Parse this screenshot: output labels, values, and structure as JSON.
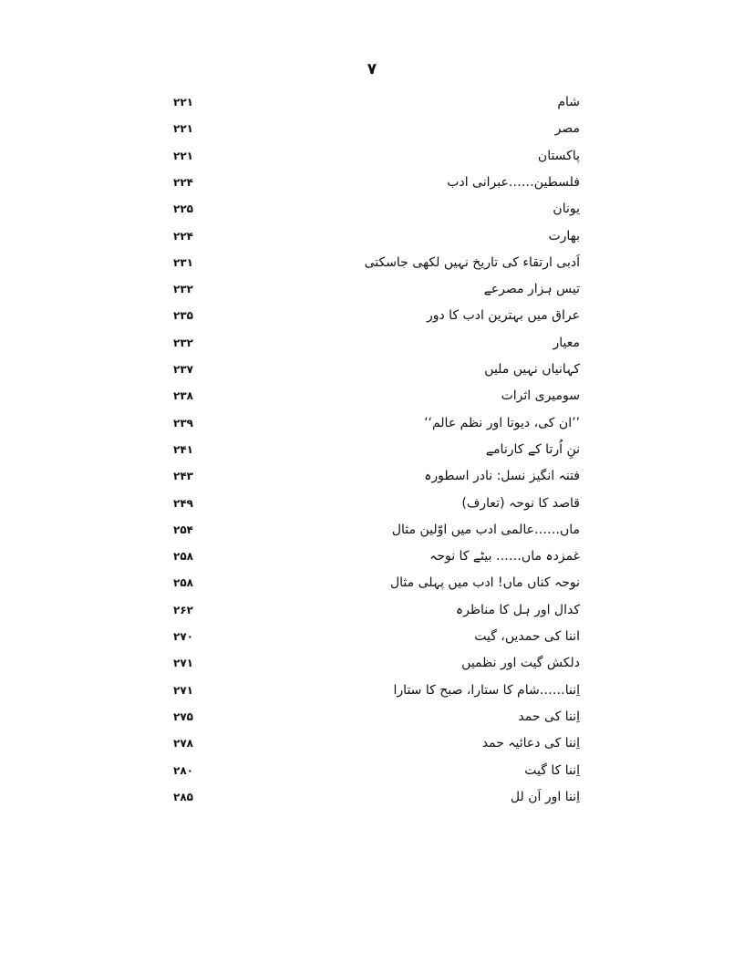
{
  "page_number": "۷",
  "entries": [
    {
      "title": "شام",
      "page": "۲۲۱"
    },
    {
      "title": "مصر",
      "page": "۲۲۱"
    },
    {
      "title": "پاکستان",
      "page": "۲۲۱"
    },
    {
      "title": "فلسطین……عبرانی ادب",
      "page": "۲۲۴"
    },
    {
      "title": "یونان",
      "page": "۲۲۵"
    },
    {
      "title": "بھارت",
      "page": "۲۲۴"
    },
    {
      "title": "اَدبی ارتقاء کی تاریخ نہیں لکھی جاسکتی",
      "page": "۲۳۱"
    },
    {
      "title": "تیس ہزار مصرعے",
      "page": "۲۳۲"
    },
    {
      "title": "عراق میں بہترین ادب کا دور",
      "page": "۲۳۵"
    },
    {
      "title": "معیار",
      "page": "۲۳۲"
    },
    {
      "title": "کہانیاں نہیں ملیں",
      "page": "۲۳۷"
    },
    {
      "title": "سومیری اثرات",
      "page": "۲۳۸"
    },
    {
      "title": "’’ان کی، دیوتا اور نظم عالم‘‘",
      "page": "۲۳۹"
    },
    {
      "title": "ننِ اُرتا کے کارنامے",
      "page": "۲۴۱"
    },
    {
      "title": "فتنہ انگیز نسل: نادر اسطورہ",
      "page": "۲۴۳"
    },
    {
      "title": "قاصد کا نوحہ (تعارف)",
      "page": "۲۴۹"
    },
    {
      "title": "ماں……عالمی ادب میں اوّلین مثال",
      "page": "۲۵۴"
    },
    {
      "title": "غمزدہ ماں…… بیٹے کا نوحہ",
      "page": "۲۵۸"
    },
    {
      "title": "نوحہ کناں ماں! ادب میں پہلی مثال",
      "page": "۲۵۸"
    },
    {
      "title": "کدال اور ہل کا مناظرہ",
      "page": "۲۶۲"
    },
    {
      "title": "اننا کی حمدیں، گیت",
      "page": "۲۷۰"
    },
    {
      "title": "دلکش گیت اور نظمیں",
      "page": "۲۷۱"
    },
    {
      "title": "اِننا……شام کا ستارا، صبح کا ستارا",
      "page": "۲۷۱"
    },
    {
      "title": "اِننا کی حمد",
      "page": "۲۷۵"
    },
    {
      "title": "اِننا کی دعائیہ حمد",
      "page": "۲۷۸"
    },
    {
      "title": "اِننا کا گیت",
      "page": "۲۸۰"
    },
    {
      "title": "اِننا اور اَن لل",
      "page": "۲۸۵"
    }
  ]
}
